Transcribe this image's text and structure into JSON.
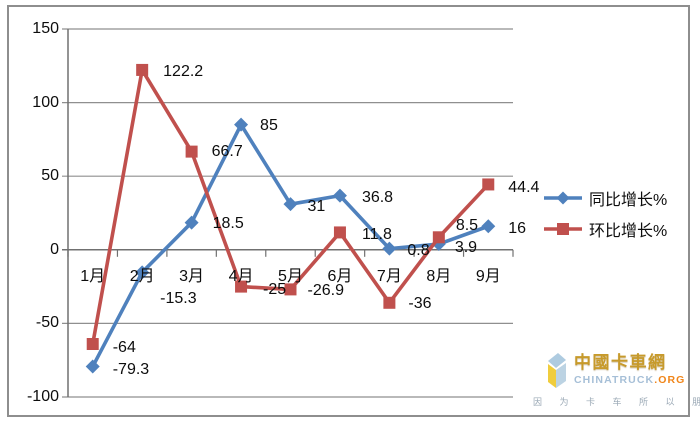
{
  "chart_data": {
    "type": "line",
    "title": "",
    "xlabel": "",
    "ylabel": "",
    "categories": [
      "1月",
      "2月",
      "3月",
      "4月",
      "5月",
      "6月",
      "7月",
      "8月",
      "9月"
    ],
    "y_ticks": [
      150,
      100,
      50,
      0,
      -50,
      -100
    ],
    "ylim": [
      -100,
      150
    ],
    "grid": true,
    "legend_position": "middle-right",
    "series": [
      {
        "name": "同比增长%",
        "color": "#4F81BD",
        "marker": "diamond",
        "values": [
          -79.3,
          -15.3,
          18.5,
          85,
          31,
          36.8,
          0.8,
          3.9,
          16
        ],
        "label_offsets": [
          [
            20,
            3
          ],
          [
            18,
            27
          ],
          [
            21,
            1
          ],
          [
            19,
            1
          ],
          [
            17,
            3
          ],
          [
            22,
            2
          ],
          [
            18,
            2
          ],
          [
            16,
            4
          ],
          [
            20,
            3
          ]
        ]
      },
      {
        "name": "环比增长%",
        "color": "#C0504D",
        "marker": "square",
        "values": [
          -64,
          122.2,
          66.7,
          -25,
          -26.9,
          11.8,
          -36,
          8.5,
          44.4
        ],
        "label_offsets": [
          [
            20,
            4
          ],
          [
            21,
            2
          ],
          [
            20,
            0
          ],
          [
            22,
            3
          ],
          [
            17,
            2
          ],
          [
            22,
            3
          ],
          [
            19,
            1
          ],
          [
            17,
            -11
          ],
          [
            20,
            4
          ]
        ]
      }
    ]
  },
  "legend": {
    "items": [
      {
        "label": "同比增长%",
        "marker": "diamond"
      },
      {
        "label": "环比增长%",
        "marker": "square"
      }
    ]
  },
  "watermark": {
    "cn_name": "中國卡車網",
    "en_name": "CHINATRUCK",
    "en_tld": ".ORG",
    "slogan": "因 为 卡 车 所 以 朋 友"
  },
  "colors": {
    "background": "#ffffff",
    "border": "#8e8e8e",
    "gridline": "#8f8f8f",
    "axis": "#707070",
    "text": "#0d0d0d",
    "series_yoy": "#4F81BD",
    "series_mom": "#C0504D",
    "watermark_gold": "#C79A2B",
    "watermark_blue": "#A6BFD7",
    "watermark_orange": "#F08519",
    "watermark_gray": "#9AA8B5"
  }
}
